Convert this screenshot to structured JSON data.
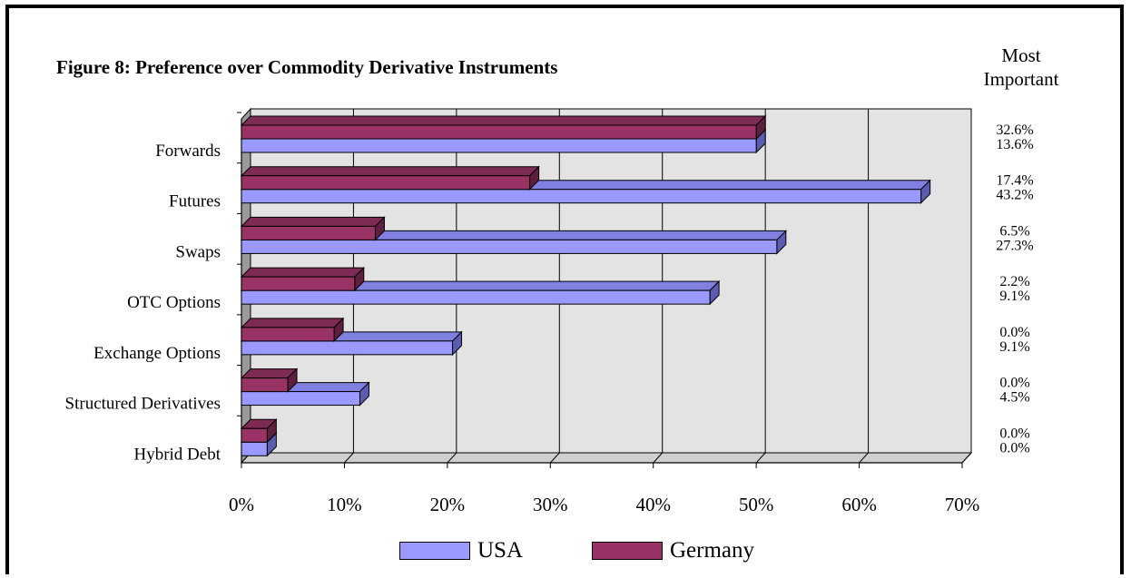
{
  "figure": {
    "title": "Figure 8: Preference over Commodity Derivative Instruments",
    "most_important_header": [
      "Most",
      "Important"
    ]
  },
  "colors": {
    "usa": "#9999ff",
    "usa_dark": "#5b5bb0",
    "germany": "#993366",
    "germany_dark": "#5e1f3e",
    "plot_bg": "#e3e3e3",
    "wall": "#9a9a9a"
  },
  "chart_data": {
    "type": "bar",
    "orientation": "horizontal",
    "three_d": true,
    "categories": [
      "Forwards",
      "Futures",
      "Swaps",
      "OTC Options",
      "Exchange Options",
      "Structured Derivatives",
      "Hybrid Debt"
    ],
    "series": [
      {
        "name": "USA",
        "values": [
          50.0,
          66.0,
          52.0,
          45.5,
          20.5,
          11.5,
          2.5
        ]
      },
      {
        "name": "Germany",
        "values": [
          50.0,
          28.0,
          13.0,
          11.0,
          9.0,
          4.5,
          2.5
        ]
      }
    ],
    "xlim": [
      0,
      70
    ],
    "x_ticks": [
      "0%",
      "10%",
      "20%",
      "30%",
      "40%",
      "50%",
      "60%",
      "70%"
    ],
    "grid": true,
    "legend_position": "bottom",
    "most_important": {
      "germany": [
        "32.6%",
        "17.4%",
        "6.5%",
        "2.2%",
        "0.0%",
        "0.0%",
        "0.0%"
      ],
      "usa": [
        "13.6%",
        "43.2%",
        "27.3%",
        "9.1%",
        "9.1%",
        "4.5%",
        "0.0%"
      ]
    }
  },
  "legend": [
    {
      "label": "USA"
    },
    {
      "label": "Germany"
    }
  ]
}
